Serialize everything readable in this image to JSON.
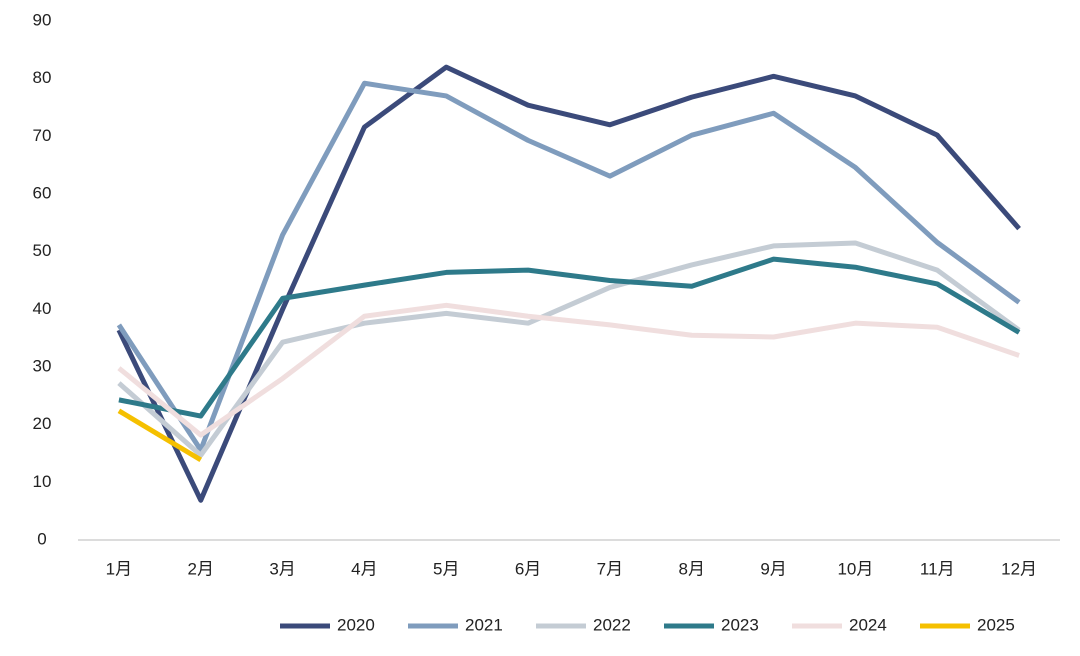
{
  "chart_data": {
    "type": "line",
    "categories": [
      "1月",
      "2月",
      "3月",
      "4月",
      "5月",
      "6月",
      "7月",
      "8月",
      "9月",
      "10月",
      "11月",
      "12月"
    ],
    "series": [
      {
        "name": "2020",
        "color": "#3b4a7a",
        "values": [
          36.4,
          6.9,
          40,
          71.6,
          82,
          75.4,
          72,
          76.8,
          80.4,
          77,
          70.2,
          54
        ]
      },
      {
        "name": "2021",
        "color": "#7f9cbd",
        "values": [
          37.3,
          15.6,
          52.9,
          79.2,
          77,
          69.3,
          63.1,
          70.2,
          74,
          64.6,
          51.6,
          41.2
        ]
      },
      {
        "name": "2022",
        "color": "#c4ccd4",
        "values": [
          27.2,
          14.7,
          34.3,
          37.6,
          39.3,
          37.6,
          43.8,
          47.7,
          51,
          51.5,
          46.8,
          36.4
        ]
      },
      {
        "name": "2023",
        "color": "#2e7a8a",
        "values": [
          24.3,
          21.5,
          41.9,
          44.2,
          46.4,
          46.8,
          45,
          44,
          48.7,
          47.3,
          44.4,
          36
        ]
      },
      {
        "name": "2024",
        "color": "#f0dede",
        "values": [
          29.8,
          18.2,
          28,
          38.8,
          40.7,
          38.8,
          37.3,
          35.5,
          35.2,
          37.6,
          36.9,
          32
        ]
      },
      {
        "name": "2025",
        "color": "#f5c000",
        "values": [
          22.4,
          13.9,
          null,
          null,
          null,
          null,
          null,
          null,
          null,
          null,
          null,
          null
        ]
      }
    ],
    "ylim": [
      0,
      90
    ],
    "yticks": [
      0,
      10,
      20,
      30,
      40,
      50,
      60,
      70,
      80,
      90
    ],
    "legend": "bottom"
  }
}
